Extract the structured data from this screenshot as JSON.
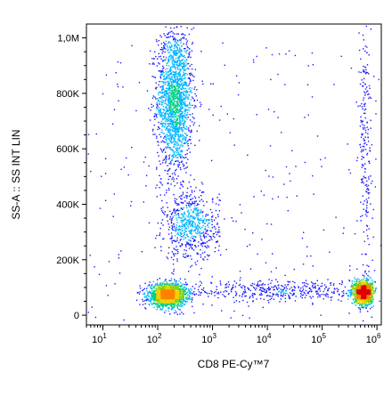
{
  "chart_data": {
    "type": "scatter",
    "title": "",
    "xlabel": "CD8 PE-Cy™7",
    "ylabel": "SS-A :: SS INT LIN",
    "x_scale": "log",
    "y_scale": "linear",
    "xlim": [
      5,
      1200000
    ],
    "ylim": [
      -35000,
      1050000
    ],
    "x_ticks": [
      {
        "value": 10,
        "base": "10",
        "exp": "1"
      },
      {
        "value": 100,
        "base": "10",
        "exp": "2"
      },
      {
        "value": 1000,
        "base": "10",
        "exp": "3"
      },
      {
        "value": 10000,
        "base": "10",
        "exp": "4"
      },
      {
        "value": 100000,
        "base": "10",
        "exp": "5"
      },
      {
        "value": 1000000,
        "base": "10",
        "exp": "6"
      }
    ],
    "y_ticks": [
      {
        "value": 0,
        "label": "0"
      },
      {
        "value": 200000,
        "label": "200K"
      },
      {
        "value": 400000,
        "label": "400K"
      },
      {
        "value": 600000,
        "label": "600K"
      },
      {
        "value": 800000,
        "label": "800K"
      },
      {
        "value": 1000000,
        "label": "1,0M"
      }
    ],
    "grid": false,
    "legend": "none",
    "density_colormap": [
      "#1a1aff",
      "#00b4ff",
      "#00d080",
      "#8cd200",
      "#f0d000",
      "#ff8000",
      "#e00000"
    ],
    "populations": [
      {
        "center_x": 200,
        "center_y": 780000,
        "spread_x_log": 0.16,
        "spread_y": 130000,
        "relative_density": 1.0
      },
      {
        "center_x": 150,
        "center_y": 75000,
        "spread_x_log": 0.17,
        "spread_y": 20000,
        "relative_density": 0.95
      },
      {
        "center_x": 400,
        "center_y": 320000,
        "spread_x_log": 0.25,
        "spread_y": 60000,
        "relative_density": 0.35
      },
      {
        "center_x": 550000,
        "center_y": 85000,
        "spread_x_log": 0.08,
        "spread_y": 20000,
        "relative_density": 0.85
      },
      {
        "center_x": 20000,
        "center_y": 90000,
        "spread_x_log": 0.9,
        "spread_y": 20000,
        "relative_density": 0.25
      },
      {
        "center_x": 600000,
        "center_y": 600000,
        "spread_x_log": 0.06,
        "spread_y": 250000,
        "relative_density": 0.12
      }
    ]
  }
}
